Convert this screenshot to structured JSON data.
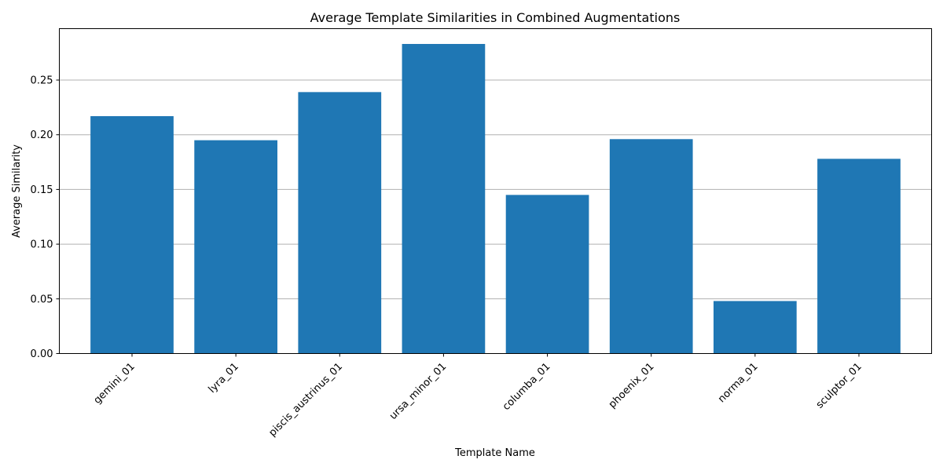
{
  "chart_data": {
    "type": "bar",
    "title": "Average Template Similarities in Combined Augmentations",
    "xlabel": "Template Name",
    "ylabel": "Average Similarity",
    "categories": [
      "gemini_01",
      "lyra_01",
      "piscis_austrinus_01",
      "ursa_minor_01",
      "columba_01",
      "phoenix_01",
      "norma_01",
      "sculptor_01"
    ],
    "values": [
      0.217,
      0.195,
      0.239,
      0.283,
      0.145,
      0.196,
      0.048,
      0.178
    ],
    "ylim": [
      0,
      0.297
    ],
    "yticks": [
      "0.00",
      "0.05",
      "0.10",
      "0.15",
      "0.20",
      "0.25"
    ],
    "grid": "y-axis",
    "legend": "none",
    "bar_color": "#1f77b4",
    "grid_color": "#b0b0b0"
  }
}
